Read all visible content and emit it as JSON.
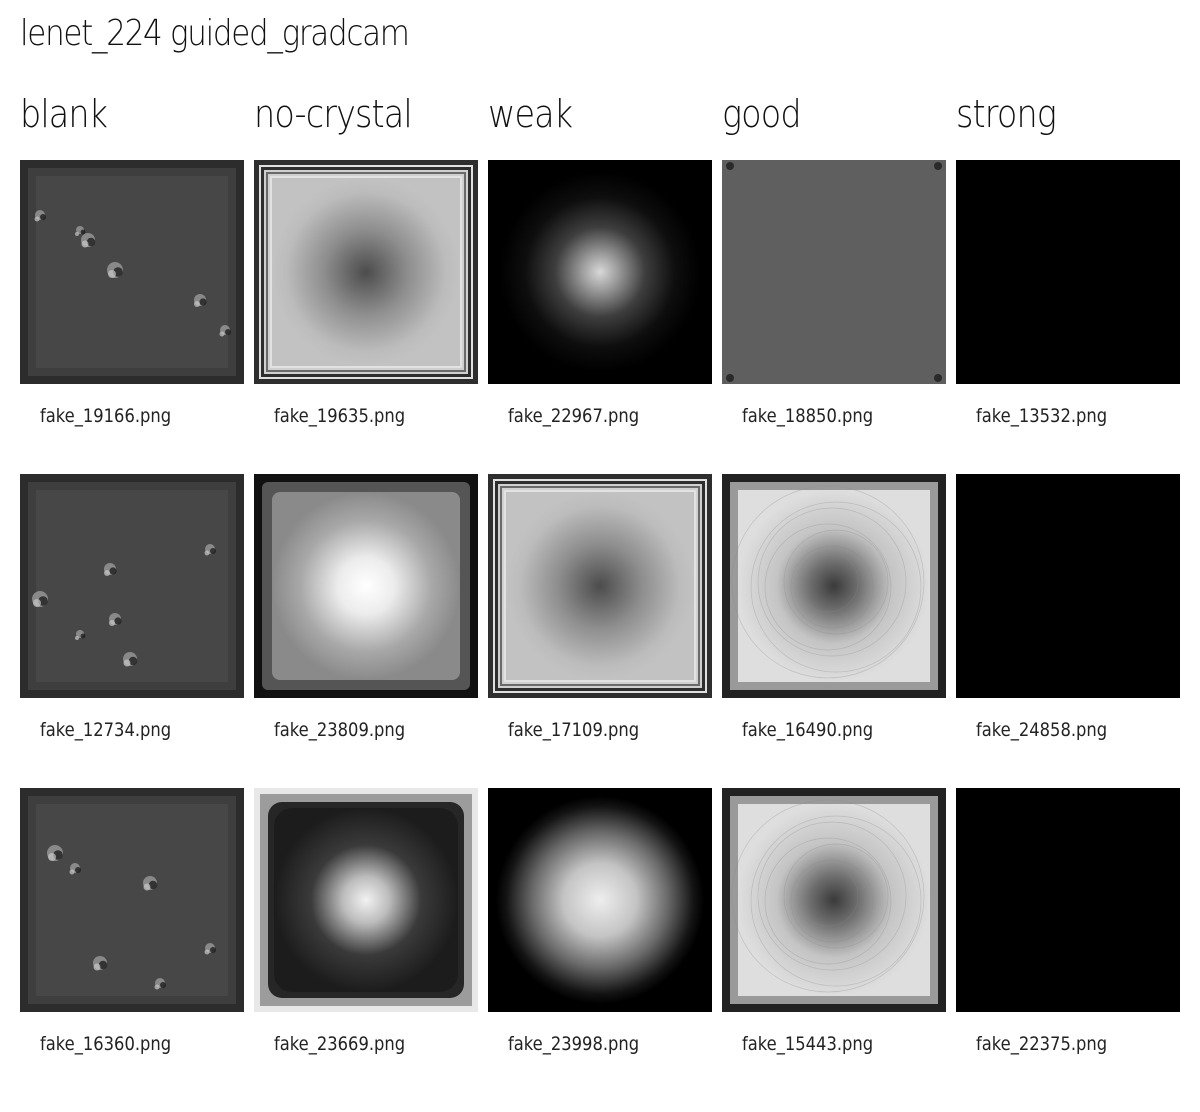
{
  "title": "lenet_224 guided_gradcam",
  "columns": [
    "blank",
    "no-crystal",
    "weak",
    "good",
    "strong"
  ],
  "rows": [
    [
      "fake_19166.png",
      "fake_19635.png",
      "fake_22967.png",
      "fake_18850.png",
      "fake_13532.png"
    ],
    [
      "fake_12734.png",
      "fake_23809.png",
      "fake_17109.png",
      "fake_16490.png",
      "fake_24858.png"
    ],
    [
      "fake_16360.png",
      "fake_23669.png",
      "fake_23998.png",
      "fake_15443.png",
      "fake_22375.png"
    ]
  ],
  "images": [
    [
      "blank-speckle",
      "gray-framed-dark-center",
      "black-bright-center-small",
      "flat-gray",
      "solid-black"
    ],
    [
      "blank-speckle",
      "gray-bright-center",
      "gray-framed-dark-center",
      "light-textured-dark-center",
      "solid-black"
    ],
    [
      "blank-speckle",
      "dark-bright-center-light-frame",
      "black-bright-center-large",
      "light-textured-dark-center",
      "solid-black"
    ]
  ]
}
